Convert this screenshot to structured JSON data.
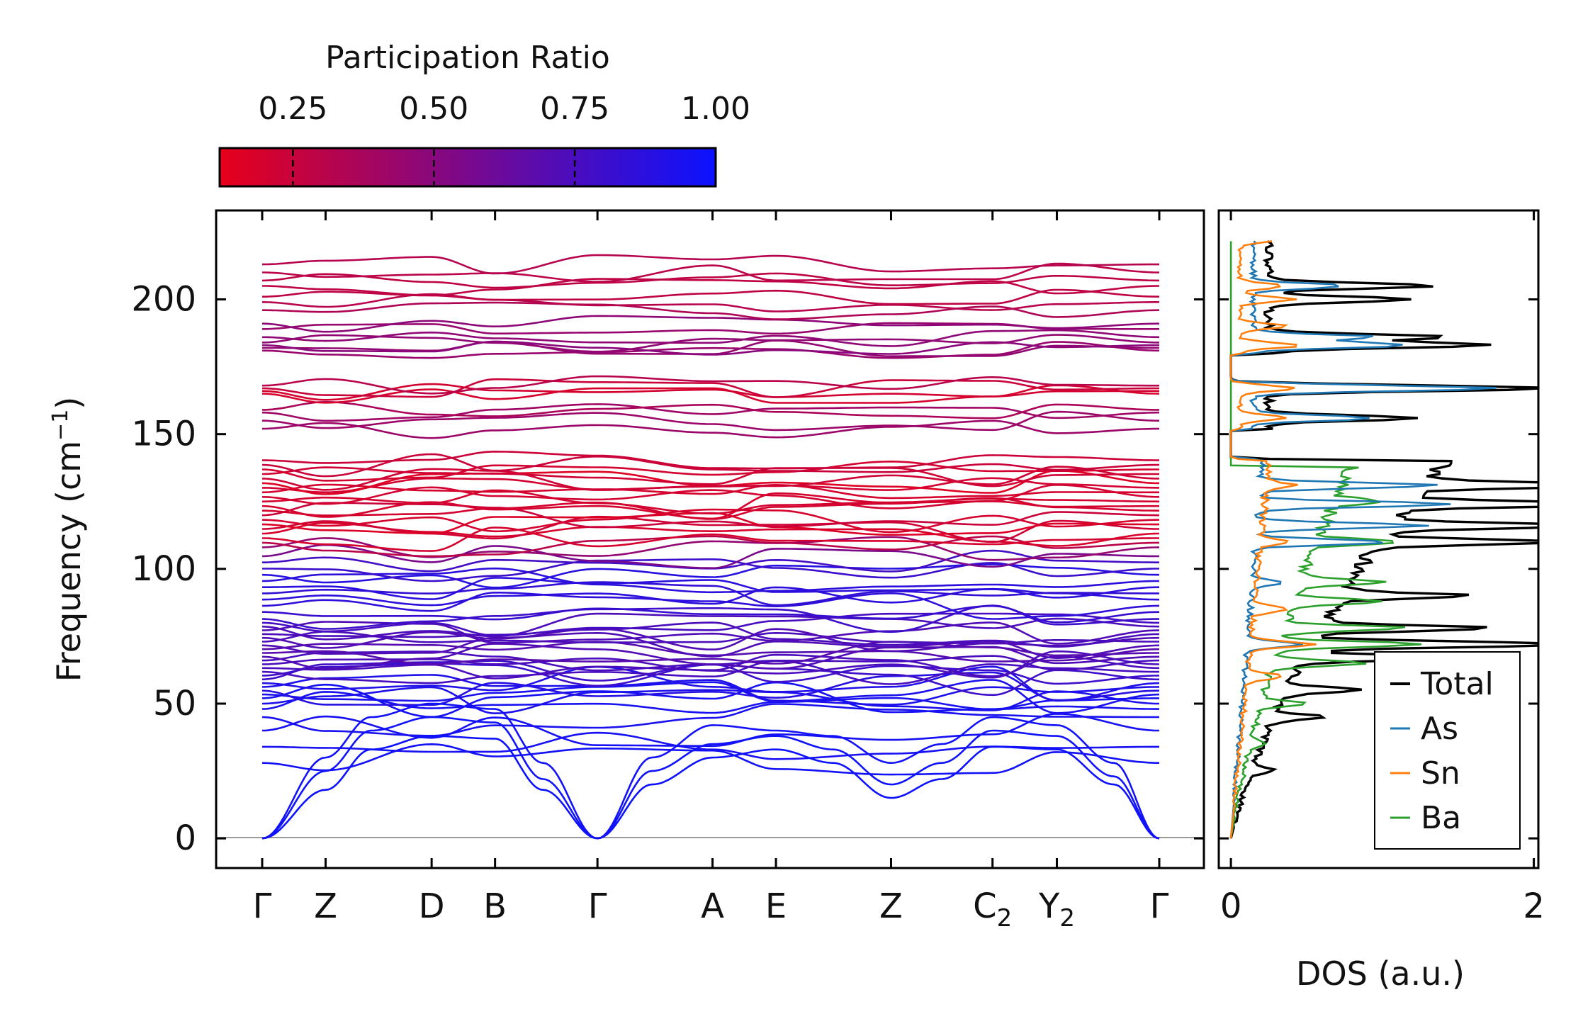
{
  "chart_data": [
    {
      "type": "line",
      "title": "",
      "xlabel": "",
      "ylabel": "Frequency (cm",
      "ylabel_unit_sup": "−1",
      "ylabel_close": ")",
      "ylim": [
        -11,
        233
      ],
      "yticks": [
        0,
        50,
        100,
        150,
        200
      ],
      "k_points": [
        {
          "label": "Γ",
          "sub": "",
          "pos": 0.0
        },
        {
          "label": "Z",
          "sub": "",
          "pos": 0.7
        },
        {
          "label": "D",
          "sub": "",
          "pos": 1.87
        },
        {
          "label": "B",
          "sub": "",
          "pos": 2.57
        },
        {
          "label": "Γ",
          "sub": "",
          "pos": 3.7
        },
        {
          "label": "A",
          "sub": "",
          "pos": 4.97
        },
        {
          "label": "E",
          "sub": "",
          "pos": 5.67
        },
        {
          "label": "Z",
          "sub": "",
          "pos": 6.94
        },
        {
          "label": "C",
          "sub": "2",
          "pos": 8.06
        },
        {
          "label": "Y",
          "sub": "2",
          "pos": 8.77
        },
        {
          "label": "Γ",
          "sub": "",
          "pos": 9.9
        }
      ],
      "colorbar": {
        "label": "Participation Ratio",
        "range": [
          0.12,
          1.0
        ],
        "ticks": [
          "0.25",
          "0.50",
          "0.75",
          "1.00"
        ],
        "tick_values": [
          0.25,
          0.5,
          0.75,
          1.0
        ],
        "low_color": "#e8001a",
        "high_color": "#0b12ff"
      },
      "acoustic_branches": [
        {
          "name": "acoustic-1",
          "nodes": [
            [
              0,
              0,
              1
            ],
            [
              0.7,
              18,
              1
            ],
            [
              1.2,
              33,
              0.98
            ],
            [
              1.87,
              38,
              0.95
            ],
            [
              2.57,
              37,
              0.95
            ],
            [
              3.1,
              18,
              1
            ],
            [
              3.7,
              0,
              1
            ],
            [
              4.3,
              20,
              1
            ],
            [
              4.97,
              30,
              1
            ],
            [
              5.67,
              33,
              0.98
            ],
            [
              6.3,
              28,
              1
            ],
            [
              6.94,
              15,
              1
            ],
            [
              7.5,
              22,
              1
            ],
            [
              8.06,
              34,
              0.98
            ],
            [
              8.77,
              33,
              0.97
            ],
            [
              9.4,
              20,
              1
            ],
            [
              9.9,
              0,
              1
            ]
          ]
        },
        {
          "name": "acoustic-2",
          "nodes": [
            [
              0,
              0,
              1
            ],
            [
              0.7,
              25,
              1
            ],
            [
              1.2,
              40,
              0.97
            ],
            [
              1.87,
              45,
              0.94
            ],
            [
              2.57,
              43,
              0.93
            ],
            [
              3.1,
              22,
              1
            ],
            [
              3.7,
              0,
              1
            ],
            [
              4.3,
              25,
              1
            ],
            [
              4.97,
              35,
              0.98
            ],
            [
              5.67,
              38,
              0.97
            ],
            [
              6.3,
              33,
              1
            ],
            [
              6.94,
              20,
              1
            ],
            [
              7.5,
              28,
              1
            ],
            [
              8.06,
              40,
              0.96
            ],
            [
              8.77,
              38,
              0.95
            ],
            [
              9.4,
              23,
              1
            ],
            [
              9.9,
              0,
              1
            ]
          ]
        },
        {
          "name": "acoustic-3",
          "nodes": [
            [
              0,
              0,
              1
            ],
            [
              0.7,
              30,
              1
            ],
            [
              1.2,
              45,
              0.95
            ],
            [
              1.87,
              50,
              0.92
            ],
            [
              2.57,
              48,
              0.92
            ],
            [
              3.1,
              28,
              1
            ],
            [
              3.7,
              0,
              1
            ],
            [
              4.3,
              30,
              1
            ],
            [
              4.97,
              42,
              0.96
            ],
            [
              5.67,
              40,
              0.95
            ],
            [
              6.3,
              38,
              1
            ],
            [
              6.94,
              28,
              1
            ],
            [
              7.5,
              35,
              1
            ],
            [
              8.06,
              45,
              0.94
            ],
            [
              8.77,
              42,
              0.93
            ],
            [
              9.4,
              28,
              1
            ],
            [
              9.9,
              0,
              1
            ]
          ]
        }
      ],
      "band_count": 95,
      "band_gaps_cm1": [
        [
          141,
          152
        ],
        [
          168,
          181
        ]
      ]
    },
    {
      "type": "line",
      "xlabel": "DOS (a.u.)",
      "xlim": [
        -0.08,
        2.03
      ],
      "xticks": [
        0,
        2
      ],
      "ylim": [
        -11,
        233
      ],
      "legend_position": "lower-right",
      "series": [
        {
          "name": "Total",
          "color": "#000000"
        },
        {
          "name": "As",
          "color": "#1f77b4"
        },
        {
          "name": "Sn",
          "color": "#ff7f0e"
        },
        {
          "name": "Ba",
          "color": "#2ca02c"
        }
      ],
      "peaks_total": [
        [
          205,
          1.1
        ],
        [
          200,
          0.9
        ],
        [
          186,
          1.2
        ],
        [
          183,
          1.5
        ],
        [
          167,
          1.95
        ],
        [
          156,
          1.0
        ],
        [
          131,
          1.3
        ],
        [
          124,
          1.35
        ],
        [
          116,
          1.3
        ],
        [
          110,
          1.2
        ],
        [
          90,
          0.85
        ],
        [
          78,
          1.15
        ],
        [
          72,
          1.75
        ],
        [
          67,
          1.05
        ],
        [
          55,
          0.5
        ],
        [
          45,
          0.35
        ],
        [
          25,
          0.15
        ]
      ],
      "peaks_as": [
        [
          205,
          0.6
        ],
        [
          186,
          0.8
        ],
        [
          183,
          1.0
        ],
        [
          167,
          1.6
        ],
        [
          156,
          0.8
        ],
        [
          131,
          1.2
        ],
        [
          124,
          1.25
        ],
        [
          116,
          1.1
        ],
        [
          110,
          0.9
        ],
        [
          95,
          0.2
        ],
        [
          72,
          0.35
        ]
      ],
      "peaks_sn": [
        [
          222,
          0.2
        ],
        [
          205,
          0.3
        ],
        [
          200,
          0.35
        ],
        [
          190,
          0.3
        ],
        [
          183,
          0.4
        ],
        [
          167,
          0.35
        ],
        [
          156,
          0.3
        ],
        [
          131,
          0.2
        ],
        [
          110,
          0.2
        ],
        [
          85,
          0.25
        ],
        [
          72,
          0.4
        ],
        [
          60,
          0.25
        ]
      ],
      "peaks_ba": [
        [
          125,
          0.35
        ],
        [
          110,
          0.5
        ],
        [
          95,
          0.55
        ],
        [
          88,
          0.6
        ],
        [
          78,
          0.8
        ],
        [
          72,
          0.95
        ],
        [
          65,
          0.6
        ],
        [
          50,
          0.3
        ],
        [
          35,
          0.1
        ]
      ]
    }
  ]
}
